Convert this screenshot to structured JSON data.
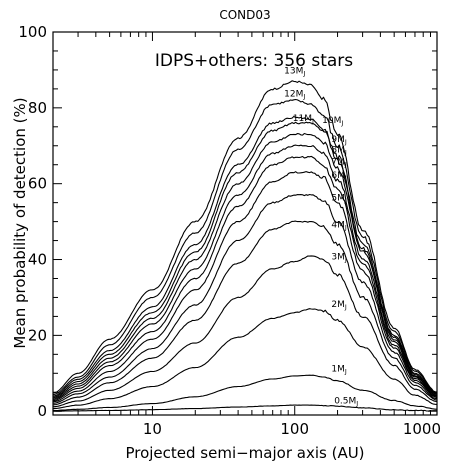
{
  "chart_data": {
    "type": "line",
    "title": "COND03",
    "annotation": "IDPS+others: 356 stars",
    "xlabel": "Projected semi−major axis (AU)",
    "ylabel": "Mean probability of detection (%)",
    "xscale": "log",
    "xlim": [
      2,
      1000
    ],
    "ylim": [
      -1,
      100
    ],
    "x_ticks": [
      {
        "value": 10,
        "label": "10"
      },
      {
        "value": 100,
        "label": "100"
      },
      {
        "value": 1000,
        "label": "1000"
      }
    ],
    "y_ticks": [
      {
        "value": 0,
        "label": "0"
      },
      {
        "value": 20,
        "label": "20"
      },
      {
        "value": 40,
        "label": "40"
      },
      {
        "value": 60,
        "label": "60"
      },
      {
        "value": 80,
        "label": "80"
      },
      {
        "value": 100,
        "label": "100"
      }
    ],
    "grid": false,
    "x": [
      2,
      3,
      5,
      10,
      20,
      40,
      70,
      100,
      130,
      160,
      200,
      300,
      500,
      700,
      1000
    ],
    "series": [
      {
        "name": "13M",
        "sub": "J",
        "values": [
          4.8,
          10,
          19,
          32,
          50,
          72,
          85,
          87,
          86,
          82,
          73,
          48,
          22,
          11,
          5
        ]
      },
      {
        "name": "12M",
        "sub": "J",
        "values": [
          4.4,
          9,
          17.5,
          30,
          47,
          69,
          81,
          82,
          81,
          78,
          70,
          46,
          21,
          10.5,
          4.8
        ]
      },
      {
        "name": "11M",
        "sub": "J",
        "values": [
          4,
          8.4,
          16,
          27.5,
          44,
          65,
          76,
          77.5,
          77,
          74.5,
          67,
          44,
          20,
          10,
          4.6
        ]
      },
      {
        "name": "10M",
        "sub": "J",
        "values": [
          3.7,
          7.8,
          15,
          26,
          42,
          63,
          74,
          76,
          76,
          74,
          66,
          43,
          19.5,
          9.7,
          4.4
        ]
      },
      {
        "name": "9M",
        "sub": "J",
        "values": [
          3.4,
          7.2,
          14,
          24.5,
          40,
          60,
          71,
          73,
          73,
          71,
          64,
          42,
          19,
          9.3,
          4.2
        ]
      },
      {
        "name": "8M",
        "sub": "J",
        "values": [
          3.1,
          6.6,
          13,
          23,
          37.5,
          57,
          68,
          70,
          70,
          68,
          61,
          40.5,
          18.3,
          9,
          4
        ]
      },
      {
        "name": "7M",
        "sub": "J",
        "values": [
          2.8,
          6,
          12,
          21,
          35,
          54,
          65,
          67,
          67,
          65,
          58.5,
          39,
          17.5,
          8.6,
          3.8
        ]
      },
      {
        "name": "6M",
        "sub": "J",
        "values": [
          2.5,
          5.3,
          10.5,
          19,
          32,
          50,
          60.5,
          63,
          63,
          61.5,
          55,
          37,
          16.7,
          8.2,
          3.6
        ]
      },
      {
        "name": "5M",
        "sub": "J",
        "values": [
          2.1,
          4.6,
          9,
          16.5,
          28,
          45,
          55,
          57,
          57,
          55.5,
          50,
          34,
          15.5,
          7.6,
          3.3
        ]
      },
      {
        "name": "4M",
        "sub": "J",
        "values": [
          1.7,
          3.7,
          7.5,
          14,
          24,
          39,
          48,
          50,
          50,
          48.5,
          44,
          30,
          14,
          6.8,
          3
        ]
      },
      {
        "name": "3M",
        "sub": "J",
        "values": [
          1.2,
          2.7,
          5.5,
          10.5,
          18,
          30,
          37.5,
          39.5,
          41,
          40,
          36,
          25,
          12,
          5.8,
          2.5
        ]
      },
      {
        "name": "2M",
        "sub": "J",
        "values": [
          0.7,
          1.6,
          3.3,
          6.5,
          11.5,
          19.5,
          24.5,
          26,
          27,
          26.5,
          24,
          17,
          8.5,
          4.2,
          1.8
        ]
      },
      {
        "name": "1M",
        "sub": "J",
        "values": [
          0.2,
          0.5,
          1,
          2,
          3.8,
          6.5,
          8.5,
          9.3,
          9.5,
          9,
          8,
          5.5,
          2.8,
          1.4,
          0.6
        ]
      },
      {
        "name": "0.5M",
        "sub": "J",
        "values": [
          0,
          0.1,
          0.2,
          0.4,
          0.7,
          1.1,
          1.4,
          1.6,
          1.6,
          1.5,
          1.3,
          0.9,
          0.4,
          0.2,
          0.1
        ]
      }
    ],
    "series_label_positions": [
      {
        "x": 100,
        "y": 89
      },
      {
        "x": 100,
        "y": 83
      },
      {
        "x": 115,
        "y": 76.5
      },
      {
        "x": 185,
        "y": 76
      },
      {
        "x": 205,
        "y": 71
      },
      {
        "x": 205,
        "y": 68.2
      },
      {
        "x": 205,
        "y": 65
      },
      {
        "x": 205,
        "y": 61.5
      },
      {
        "x": 205,
        "y": 55.5
      },
      {
        "x": 205,
        "y": 48.5
      },
      {
        "x": 205,
        "y": 40
      },
      {
        "x": 205,
        "y": 27.5
      },
      {
        "x": 205,
        "y": 10.5
      },
      {
        "x": 230,
        "y": 2
      }
    ]
  }
}
